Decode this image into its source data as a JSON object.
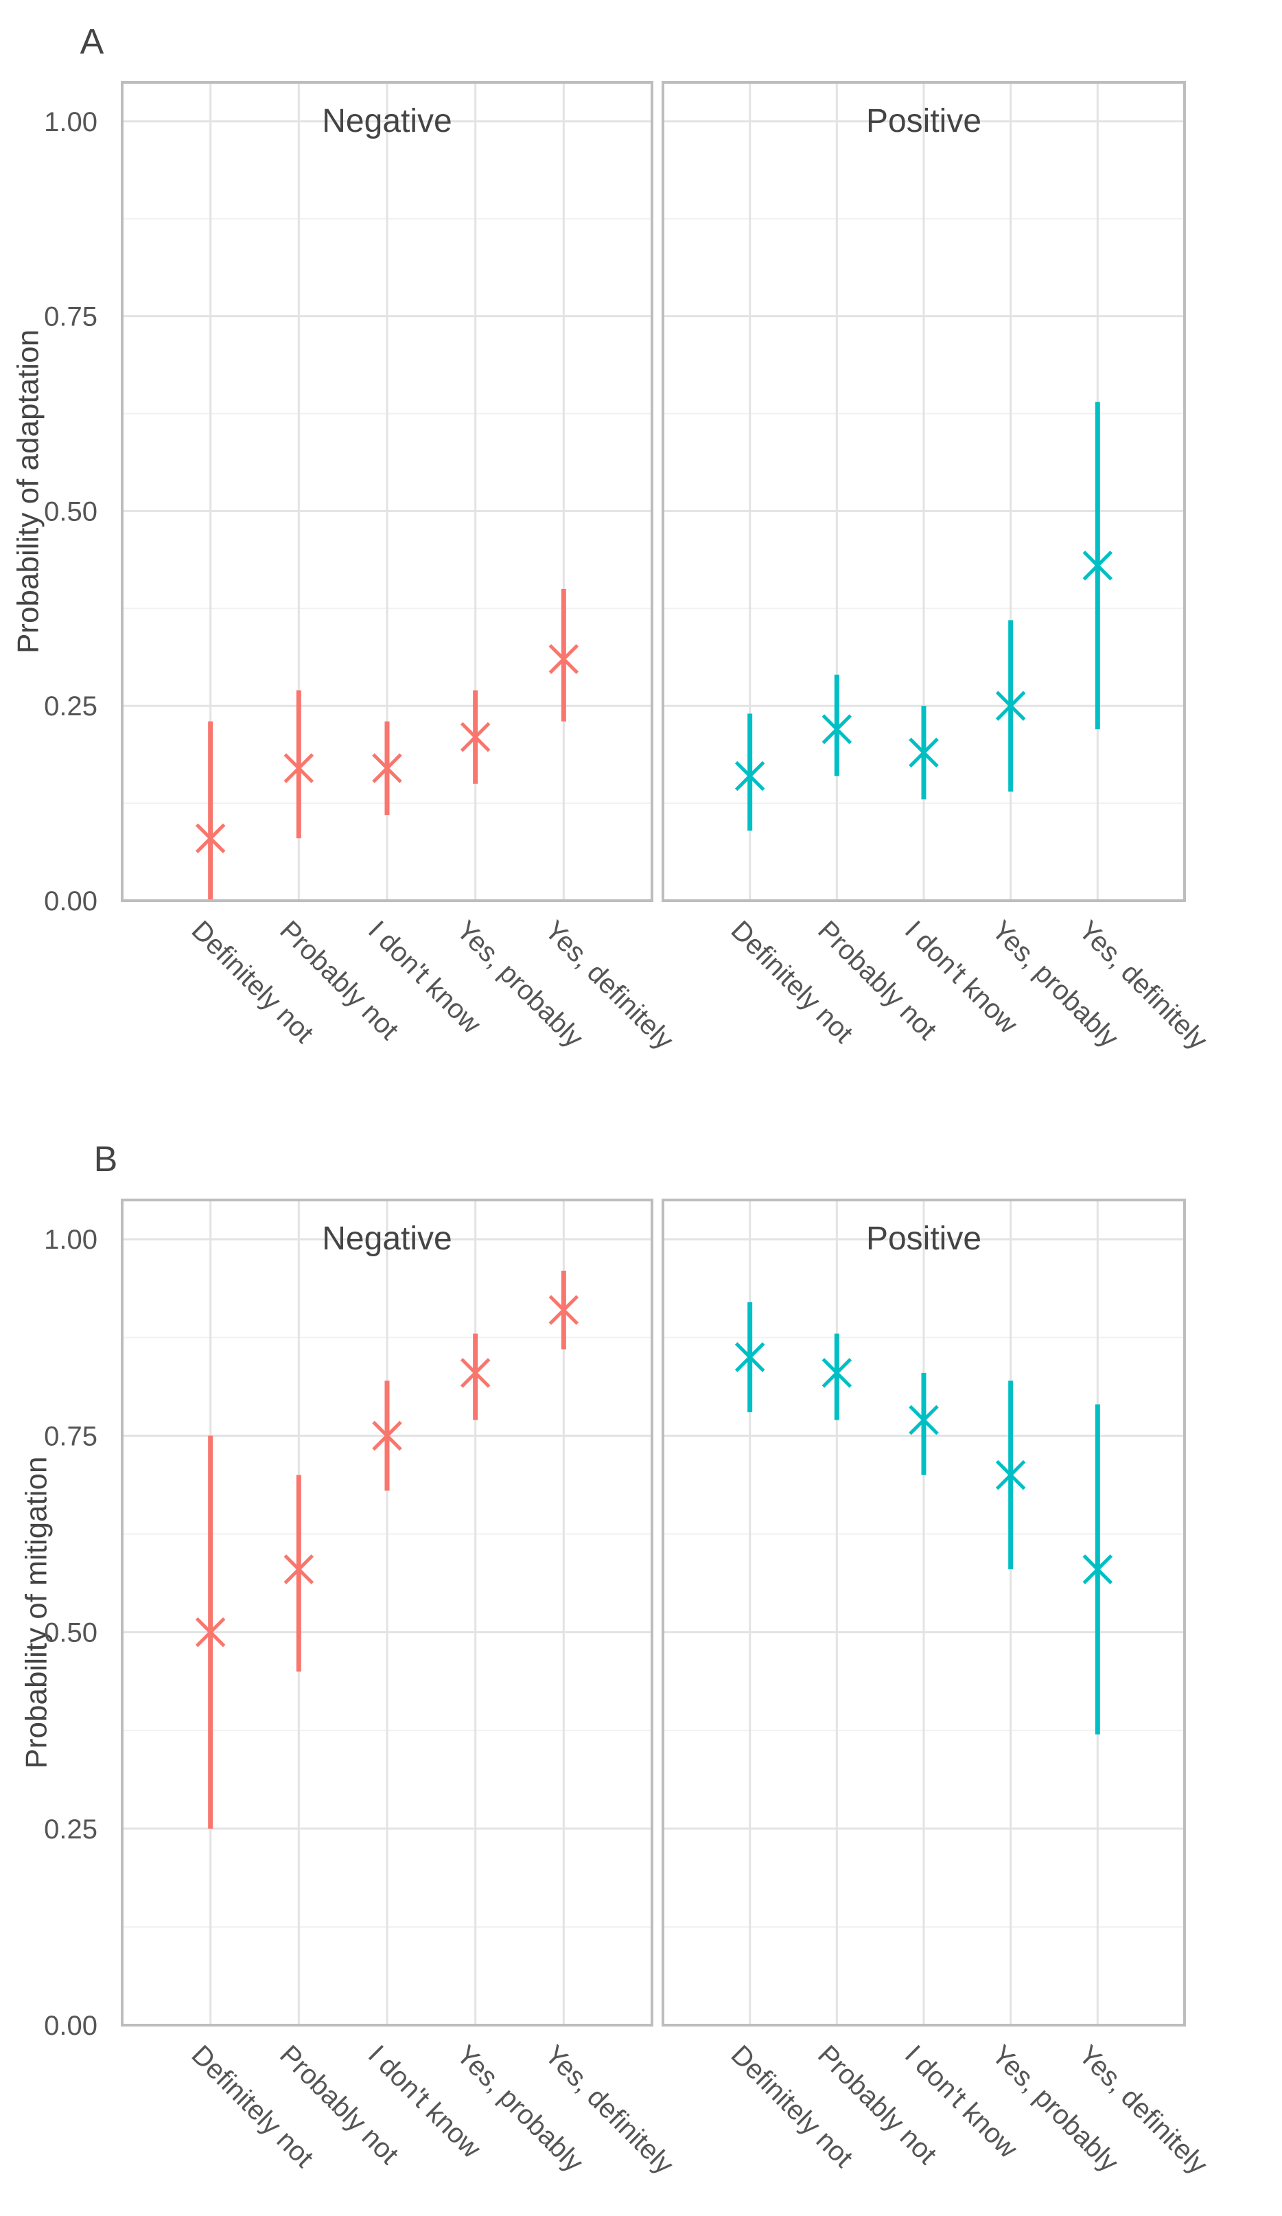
{
  "chart_data": [
    {
      "type": "errorbar",
      "panel_label": "A",
      "ylabel": "Probability of adaptation",
      "ylim": [
        0,
        1.05
      ],
      "yticks": [
        0,
        0.25,
        0.5,
        0.75,
        1
      ],
      "ytick_labels": [
        "0.00",
        "0.25",
        "0.50",
        "0.75",
        "1.00"
      ],
      "categories": [
        "Definitely not",
        "Probably not",
        "I don't know",
        "Yes, probably",
        "Yes, definitely"
      ],
      "facets": [
        {
          "name": "Negative",
          "color": "#f8766d",
          "estimates": [
            0.08,
            0.17,
            0.17,
            0.21,
            0.31
          ],
          "lower": [
            0.0,
            0.08,
            0.11,
            0.15,
            0.23
          ],
          "upper": [
            0.23,
            0.27,
            0.23,
            0.27,
            0.4
          ]
        },
        {
          "name": "Positive",
          "color": "#00bfc4",
          "estimates": [
            0.16,
            0.22,
            0.19,
            0.25,
            0.43
          ],
          "lower": [
            0.09,
            0.16,
            0.13,
            0.14,
            0.22
          ],
          "upper": [
            0.24,
            0.29,
            0.25,
            0.36,
            0.64
          ]
        }
      ]
    },
    {
      "type": "errorbar",
      "panel_label": "B",
      "ylabel": "Probability of mitigation",
      "ylim": [
        0,
        1.05
      ],
      "yticks": [
        0,
        0.25,
        0.5,
        0.75,
        1
      ],
      "ytick_labels": [
        "0.00",
        "0.25",
        "0.50",
        "0.75",
        "1.00"
      ],
      "categories": [
        "Definitely not",
        "Probably not",
        "I don't know",
        "Yes, probably",
        "Yes, definitely"
      ],
      "facets": [
        {
          "name": "Negative",
          "color": "#f8766d",
          "estimates": [
            0.5,
            0.58,
            0.75,
            0.83,
            0.91
          ],
          "lower": [
            0.25,
            0.45,
            0.68,
            0.77,
            0.86
          ],
          "upper": [
            0.75,
            0.7,
            0.82,
            0.88,
            0.96
          ]
        },
        {
          "name": "Positive",
          "color": "#00bfc4",
          "estimates": [
            0.85,
            0.83,
            0.77,
            0.7,
            0.58
          ],
          "lower": [
            0.78,
            0.77,
            0.7,
            0.58,
            0.37
          ],
          "upper": [
            0.92,
            0.88,
            0.83,
            0.82,
            0.79
          ]
        }
      ]
    }
  ]
}
